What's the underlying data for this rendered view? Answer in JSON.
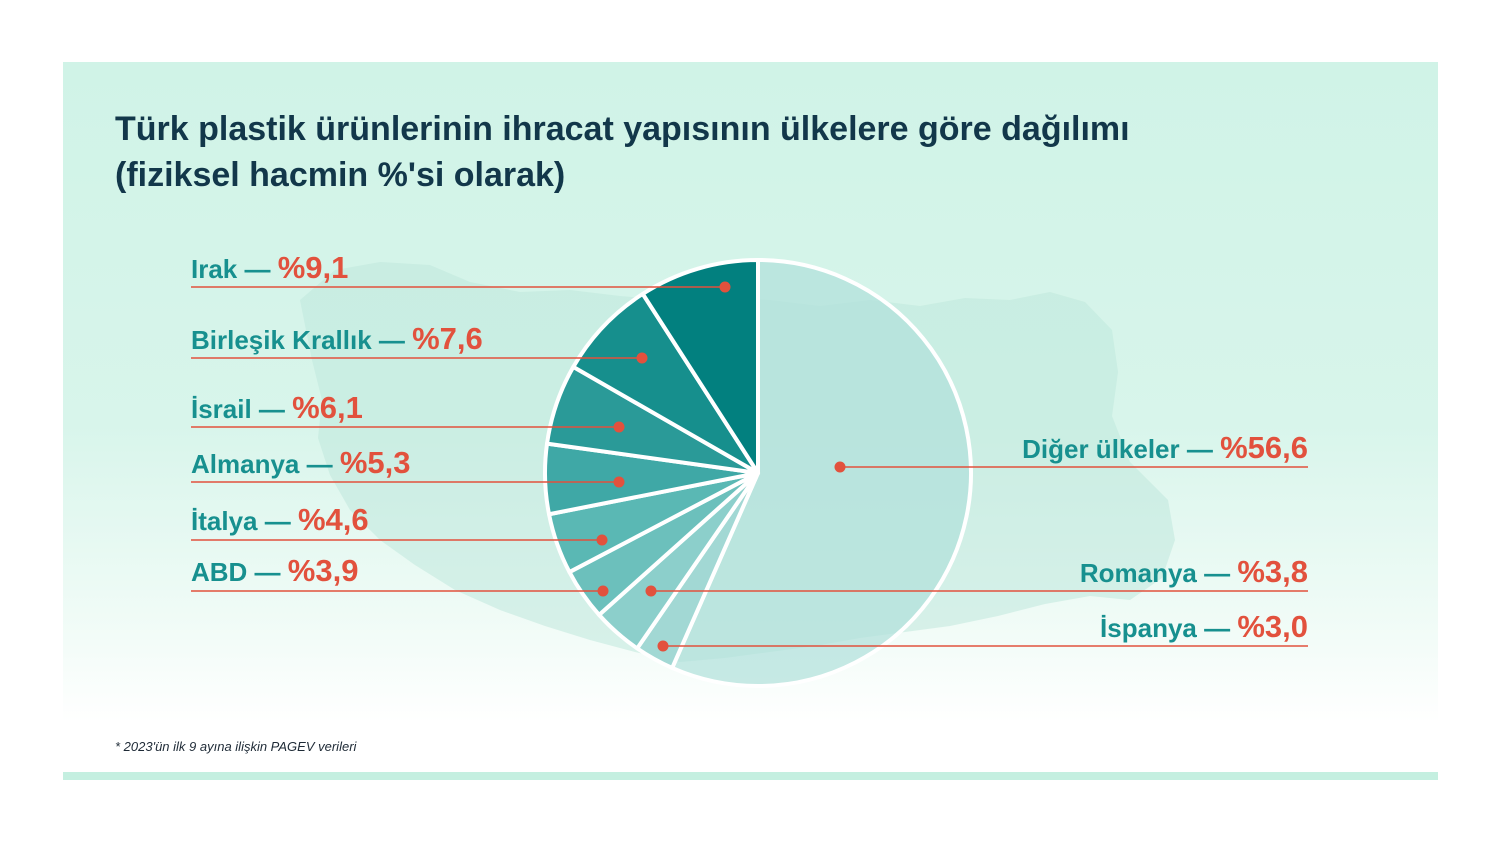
{
  "header": {
    "title_line1": "Türk plastik ürünlerinin ihracat yapısının ülkelere göre dağılımı",
    "title_line2": "(fiziksel hacmin %'si olarak)"
  },
  "footnote": "* 2023'ün ilk 9 ayına ilişkin PAGEV verileri",
  "colors": {
    "label_name": "#17908f",
    "label_value": "#e2513d",
    "leader_line": "#e2513d",
    "title": "#12374a"
  },
  "chart_data": {
    "type": "pie",
    "unit": "%",
    "start_angle_deg": 0,
    "direction": "clockwise",
    "slices": [
      {
        "label": "Diğer ülkeler",
        "value": 56.6,
        "value_text": "%56,6",
        "color": "#b2e0db"
      },
      {
        "label": "İspanya",
        "value": 3.0,
        "value_text": "%3,0",
        "color": "#a2d8d4"
      },
      {
        "label": "Romanya",
        "value": 3.8,
        "value_text": "%3,8",
        "color": "#8ccfcb"
      },
      {
        "label": "ABD",
        "value": 3.9,
        "value_text": "%3,9",
        "color": "#6cc0bc"
      },
      {
        "label": "İtalya",
        "value": 4.6,
        "value_text": "%4,6",
        "color": "#5ab8b4"
      },
      {
        "label": "Almanya",
        "value": 5.3,
        "value_text": "%5,3",
        "color": "#3fa8a6"
      },
      {
        "label": "İsrail",
        "value": 6.1,
        "value_text": "%6,1",
        "color": "#2a9a98"
      },
      {
        "label": "Birleşik Krallık",
        "value": 7.6,
        "value_text": "%7,6",
        "color": "#168f8d"
      },
      {
        "label": "Irak",
        "value": 9.1,
        "value_text": "%9,1",
        "color": "#02807f"
      }
    ]
  }
}
